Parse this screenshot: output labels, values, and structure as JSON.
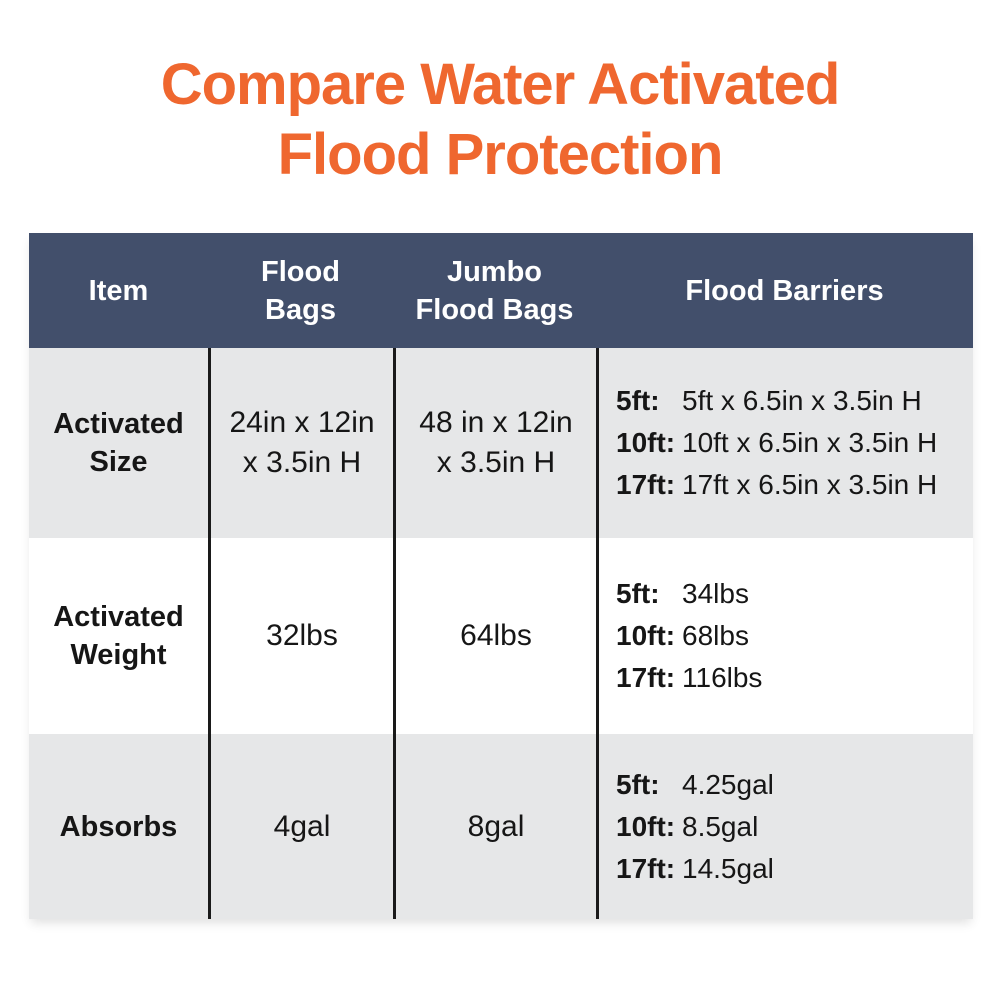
{
  "title": {
    "line1": "Compare Water Activated",
    "line2": "Flood Protection"
  },
  "colors": {
    "title_orange": "#EF672F",
    "header_navy": "#424F6B",
    "row_gray": "#E6E7E8",
    "row_white": "#FFFFFF",
    "divider_black": "#1A1A1A",
    "header_text": "#FFFFFF",
    "body_text": "#161616"
  },
  "table": {
    "header": {
      "item": "Item",
      "flood1": "Flood",
      "flood2": "Bags",
      "jumbo1": "Jumbo",
      "jumbo2": "Flood Bags",
      "barriers": "Flood Barriers"
    },
    "row_size": {
      "label1": "Activated",
      "label2": "Size",
      "flood1": "24in x 12in",
      "flood2": "x 3.5in H",
      "jumbo1": "48 in x 12in",
      "jumbo2": "x 3.5in H",
      "b1k": "5ft:",
      "b1v": "5ft x 6.5in x 3.5in H",
      "b2k": "10ft:",
      "b2v": "10ft x 6.5in x 3.5in H",
      "b3k": "17ft:",
      "b3v": "17ft x 6.5in x 3.5in H"
    },
    "row_weight": {
      "label1": "Activated",
      "label2": "Weight",
      "flood": "32lbs",
      "jumbo": "64lbs",
      "b1k": "5ft:",
      "b1v": "34lbs",
      "b2k": "10ft:",
      "b2v": "68lbs",
      "b3k": "17ft:",
      "b3v": "116lbs"
    },
    "row_absorbs": {
      "label": "Absorbs",
      "flood": "4gal",
      "jumbo": "8gal",
      "b1k": "5ft:",
      "b1v": "4.25gal",
      "b2k": "10ft:",
      "b2v": "8.5gal",
      "b3k": "17ft:",
      "b3v": "14.5gal"
    }
  },
  "chart_data": {
    "type": "table",
    "title": "Compare Water Activated Flood Protection",
    "columns": [
      "Item",
      "Flood Bags",
      "Jumbo Flood Bags",
      "Flood Barriers"
    ],
    "rows": [
      {
        "item": "Activated Size",
        "flood_bags": "24in x 12in x 3.5in H",
        "jumbo_flood_bags": "48 in x 12in x 3.5in H",
        "flood_barriers": {
          "5ft": "5ft x 6.5in x 3.5in H",
          "10ft": "10ft x 6.5in x 3.5in H",
          "17ft": "17ft x 6.5in x 3.5in H"
        }
      },
      {
        "item": "Activated Weight",
        "flood_bags": "32lbs",
        "jumbo_flood_bags": "64lbs",
        "flood_barriers": {
          "5ft": "34lbs",
          "10ft": "68lbs",
          "17ft": "116lbs"
        }
      },
      {
        "item": "Absorbs",
        "flood_bags": "4gal",
        "jumbo_flood_bags": "8gal",
        "flood_barriers": {
          "5ft": "4.25gal",
          "10ft": "8.5gal",
          "17ft": "14.5gal"
        }
      }
    ]
  }
}
